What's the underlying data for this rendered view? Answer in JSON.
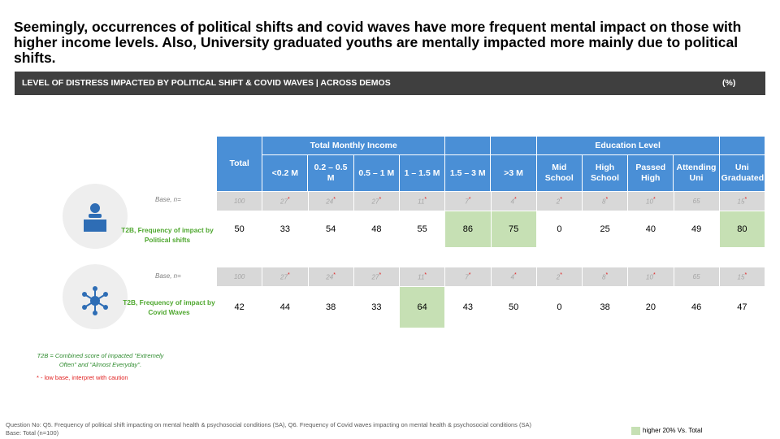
{
  "headline": "Seemingly, occurrences of political shifts and covid waves have more frequent mental impact on those with higher income levels. Also, University graduated youths are mentally impacted more mainly due to political shifts.",
  "banner": {
    "title": "LEVEL OF DISTRESS IMPACTED BY POLITICAL SHIFT & COVID WAVES | ACROSS DEMOS",
    "unit": "(%)"
  },
  "table": {
    "group_headers": {
      "total": "Total",
      "income": "Total Monthly Income",
      "education": "Education Level"
    },
    "columns": [
      "<0.2 M",
      "0.2 – 0.5 M",
      "0.5 – 1 M",
      "1 – 1.5 M",
      "1.5 – 3 M",
      ">3 M",
      "Mid School",
      "High School",
      "Passed High",
      "Attending Uni",
      "Uni Graduated"
    ],
    "base_label": "Base, n=",
    "base_values": [
      "100",
      "27",
      "24",
      "27",
      "11",
      "7",
      "4",
      "2",
      "8",
      "10",
      "65",
      "15"
    ],
    "low_base_flags": [
      false,
      true,
      true,
      true,
      true,
      true,
      true,
      true,
      true,
      true,
      false,
      true
    ],
    "low_base_marker": "*",
    "political": {
      "label": "T2B, Frequency of impact by Political shifts",
      "values": [
        "50",
        "33",
        "54",
        "48",
        "55",
        "86",
        "75",
        "0",
        "25",
        "40",
        "49",
        "80"
      ],
      "highlight": [
        false,
        false,
        false,
        false,
        false,
        true,
        true,
        false,
        false,
        false,
        false,
        true
      ]
    },
    "covid": {
      "label": "T2B, Frequency of impact by Covid Waves",
      "values": [
        "42",
        "44",
        "38",
        "33",
        "64",
        "43",
        "50",
        "0",
        "38",
        "20",
        "46",
        "47"
      ],
      "highlight": [
        false,
        false,
        false,
        false,
        true,
        false,
        false,
        false,
        false,
        false,
        false,
        false
      ]
    }
  },
  "icons": {
    "political": "person-podium-icon",
    "covid": "virus-network-icon"
  },
  "notes": {
    "t2b": "T2B = Combined score of  impacted \"Extremely Often\" and \"Almost Everyday\".",
    "low_base": "* - low base, interpret with caution"
  },
  "footer": {
    "question": "Question No: Q5. Frequency of political shift impacting on mental health & psychosocial conditions (SA), Q6. Frequency of Covid waves impacting on mental health & psychosocial conditions (SA)",
    "base": "Base: Total (n=100)"
  },
  "legend": {
    "label": "higher 20% Vs. Total",
    "color": "#c6e0b4"
  },
  "colors": {
    "header_blue": "#4a8fd6",
    "banner_dark": "#3f3f3f",
    "highlight_green": "#c6e0b4",
    "label_green": "#4ea72e"
  }
}
